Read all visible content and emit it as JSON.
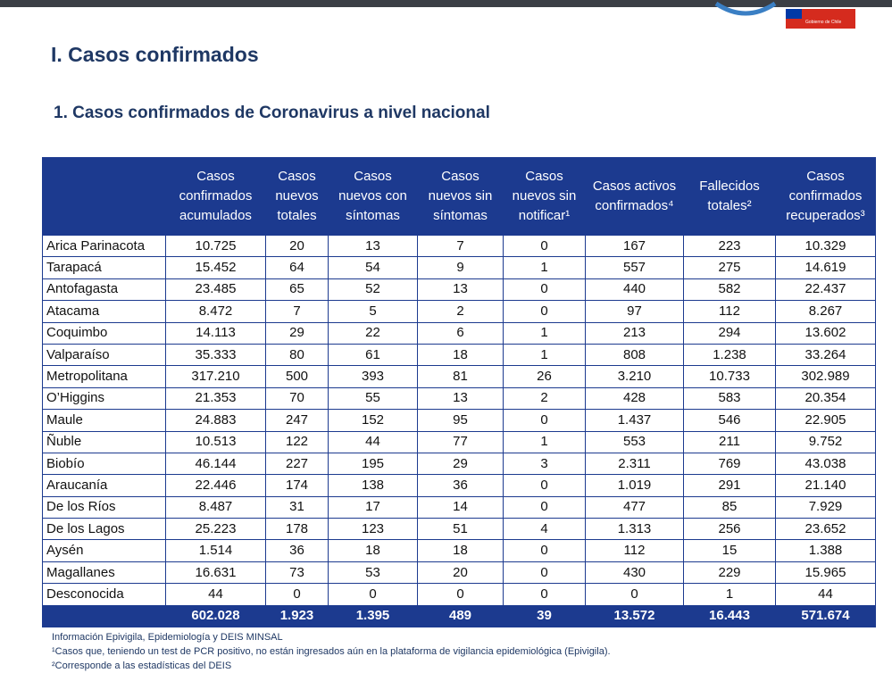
{
  "header": {
    "gov_label": "Gobierno de Chile"
  },
  "section_title": "I. Casos confirmados",
  "subtitle": "1. Casos confirmados de Coronavirus a nivel nacional",
  "table": {
    "headers": [
      "Casos confirmados acumulados",
      "Casos nuevos totales",
      "Casos nuevos con síntomas",
      "Casos nuevos sin síntomas",
      "Casos nuevos sin notificar¹",
      "Casos activos confirmados⁴",
      "Fallecidos totales²",
      "Casos confirmados recuperados³"
    ],
    "rows": [
      [
        "Arica Parinacota",
        "10.725",
        "20",
        "13",
        "7",
        "0",
        "167",
        "223",
        "10.329"
      ],
      [
        "Tarapacá",
        "15.452",
        "64",
        "54",
        "9",
        "1",
        "557",
        "275",
        "14.619"
      ],
      [
        "Antofagasta",
        "23.485",
        "65",
        "52",
        "13",
        "0",
        "440",
        "582",
        "22.437"
      ],
      [
        "Atacama",
        "8.472",
        "7",
        "5",
        "2",
        "0",
        "97",
        "112",
        "8.267"
      ],
      [
        "Coquimbo",
        "14.113",
        "29",
        "22",
        "6",
        "1",
        "213",
        "294",
        "13.602"
      ],
      [
        "Valparaíso",
        "35.333",
        "80",
        "61",
        "18",
        "1",
        "808",
        "1.238",
        "33.264"
      ],
      [
        "Metropolitana",
        "317.210",
        "500",
        "393",
        "81",
        "26",
        "3.210",
        "10.733",
        "302.989"
      ],
      [
        "O’Higgins",
        "21.353",
        "70",
        "55",
        "13",
        "2",
        "428",
        "583",
        "20.354"
      ],
      [
        "Maule",
        "24.883",
        "247",
        "152",
        "95",
        "0",
        "1.437",
        "546",
        "22.905"
      ],
      [
        "Ñuble",
        "10.513",
        "122",
        "44",
        "77",
        "1",
        "553",
        "211",
        "9.752"
      ],
      [
        "Biobío",
        "46.144",
        "227",
        "195",
        "29",
        "3",
        "2.311",
        "769",
        "43.038"
      ],
      [
        "Araucanía",
        "22.446",
        "174",
        "138",
        "36",
        "0",
        "1.019",
        "291",
        "21.140"
      ],
      [
        "De los Ríos",
        "8.487",
        "31",
        "17",
        "14",
        "0",
        "477",
        "85",
        "7.929"
      ],
      [
        "De los Lagos",
        "25.223",
        "178",
        "123",
        "51",
        "4",
        "1.313",
        "256",
        "23.652"
      ],
      [
        "Aysén",
        "1.514",
        "36",
        "18",
        "18",
        "0",
        "112",
        "15",
        "1.388"
      ],
      [
        "Magallanes",
        "16.631",
        "73",
        "53",
        "20",
        "0",
        "430",
        "229",
        "15.965"
      ],
      [
        "Desconocida",
        "44",
        "0",
        "0",
        "0",
        "0",
        "0",
        "1",
        "44"
      ]
    ],
    "totals": [
      "602.028",
      "1.923",
      "1.395",
      "489",
      "39",
      "13.572",
      "16.443",
      "571.674"
    ]
  },
  "footnotes": [
    "Información Epivigila, Epidemiología y DEIS MINSAL",
    "¹Casos que, teniendo un test de PCR positivo, no están ingresados aún en la plataforma de vigilancia epidemiológica (Epivigila).",
    "²Corresponde a las estadísticas del DEIS"
  ]
}
